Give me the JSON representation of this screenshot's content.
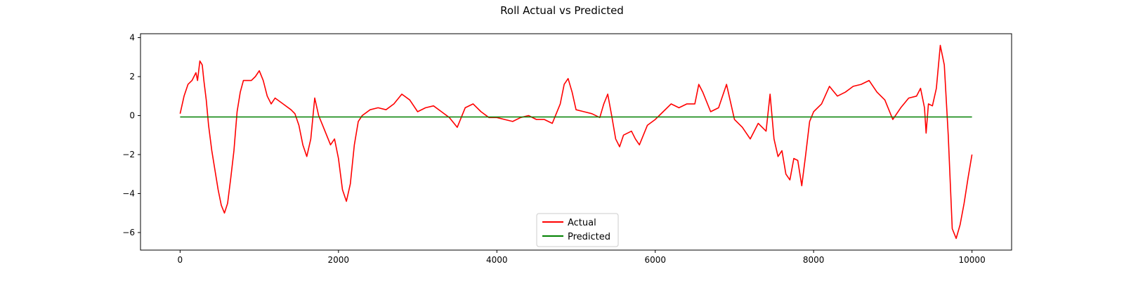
{
  "chart_data": {
    "type": "line",
    "title": "Roll Actual vs Predicted",
    "xlabel": "",
    "ylabel": "",
    "xlim": [
      -500,
      10500
    ],
    "ylim": [
      -6.9,
      4.2
    ],
    "x_ticks": [
      0,
      2000,
      4000,
      6000,
      8000,
      10000
    ],
    "y_ticks": [
      4,
      2,
      0,
      -2,
      -4,
      -6
    ],
    "x_tick_labels": [
      "0",
      "2000",
      "4000",
      "6000",
      "8000",
      "10000"
    ],
    "y_tick_labels": [
      "4",
      "2",
      "0",
      "−2",
      "−4",
      "−6"
    ],
    "grid": false,
    "legend_position": "lower center",
    "series": [
      {
        "name": "Actual",
        "color": "#ff0000",
        "points": [
          [
            0,
            0.1
          ],
          [
            50,
            1.0
          ],
          [
            100,
            1.6
          ],
          [
            150,
            1.8
          ],
          [
            200,
            2.2
          ],
          [
            220,
            1.8
          ],
          [
            250,
            2.8
          ],
          [
            280,
            2.6
          ],
          [
            300,
            1.8
          ],
          [
            330,
            0.8
          ],
          [
            360,
            -0.5
          ],
          [
            400,
            -1.8
          ],
          [
            440,
            -2.8
          ],
          [
            480,
            -3.8
          ],
          [
            520,
            -4.6
          ],
          [
            560,
            -5.0
          ],
          [
            600,
            -4.5
          ],
          [
            640,
            -3.2
          ],
          [
            680,
            -1.8
          ],
          [
            720,
            0.2
          ],
          [
            760,
            1.2
          ],
          [
            800,
            1.8
          ],
          [
            900,
            1.8
          ],
          [
            950,
            2.0
          ],
          [
            1000,
            2.3
          ],
          [
            1050,
            1.8
          ],
          [
            1100,
            1.0
          ],
          [
            1150,
            0.6
          ],
          [
            1200,
            0.9
          ],
          [
            1300,
            0.6
          ],
          [
            1400,
            0.3
          ],
          [
            1450,
            0.1
          ],
          [
            1500,
            -0.5
          ],
          [
            1550,
            -1.5
          ],
          [
            1600,
            -2.1
          ],
          [
            1650,
            -1.2
          ],
          [
            1700,
            0.9
          ],
          [
            1750,
            0.0
          ],
          [
            1800,
            -0.5
          ],
          [
            1850,
            -1.0
          ],
          [
            1900,
            -1.5
          ],
          [
            1950,
            -1.2
          ],
          [
            2000,
            -2.2
          ],
          [
            2050,
            -3.8
          ],
          [
            2100,
            -4.4
          ],
          [
            2150,
            -3.5
          ],
          [
            2200,
            -1.5
          ],
          [
            2250,
            -0.3
          ],
          [
            2300,
            0.0
          ],
          [
            2400,
            0.3
          ],
          [
            2500,
            0.4
          ],
          [
            2600,
            0.3
          ],
          [
            2700,
            0.6
          ],
          [
            2800,
            1.1
          ],
          [
            2900,
            0.8
          ],
          [
            3000,
            0.2
          ],
          [
            3100,
            0.4
          ],
          [
            3200,
            0.5
          ],
          [
            3300,
            0.2
          ],
          [
            3400,
            -0.1
          ],
          [
            3500,
            -0.6
          ],
          [
            3600,
            0.4
          ],
          [
            3700,
            0.6
          ],
          [
            3800,
            0.2
          ],
          [
            3900,
            -0.1
          ],
          [
            4000,
            -0.1
          ],
          [
            4100,
            -0.2
          ],
          [
            4200,
            -0.3
          ],
          [
            4300,
            -0.1
          ],
          [
            4400,
            0.0
          ],
          [
            4500,
            -0.2
          ],
          [
            4600,
            -0.2
          ],
          [
            4700,
            -0.4
          ],
          [
            4800,
            0.6
          ],
          [
            4850,
            1.6
          ],
          [
            4900,
            1.9
          ],
          [
            4950,
            1.2
          ],
          [
            5000,
            0.3
          ],
          [
            5100,
            0.2
          ],
          [
            5200,
            0.1
          ],
          [
            5300,
            -0.1
          ],
          [
            5350,
            0.6
          ],
          [
            5400,
            1.1
          ],
          [
            5450,
            0.0
          ],
          [
            5500,
            -1.2
          ],
          [
            5550,
            -1.6
          ],
          [
            5600,
            -1.0
          ],
          [
            5700,
            -0.8
          ],
          [
            5750,
            -1.2
          ],
          [
            5800,
            -1.5
          ],
          [
            5900,
            -0.5
          ],
          [
            6000,
            -0.2
          ],
          [
            6100,
            0.2
          ],
          [
            6200,
            0.6
          ],
          [
            6300,
            0.4
          ],
          [
            6400,
            0.6
          ],
          [
            6500,
            0.6
          ],
          [
            6550,
            1.6
          ],
          [
            6600,
            1.2
          ],
          [
            6700,
            0.2
          ],
          [
            6800,
            0.4
          ],
          [
            6900,
            1.6
          ],
          [
            7000,
            -0.2
          ],
          [
            7100,
            -0.6
          ],
          [
            7200,
            -1.2
          ],
          [
            7300,
            -0.4
          ],
          [
            7400,
            -0.8
          ],
          [
            7450,
            1.1
          ],
          [
            7500,
            -1.2
          ],
          [
            7550,
            -2.1
          ],
          [
            7600,
            -1.8
          ],
          [
            7650,
            -3.0
          ],
          [
            7700,
            -3.3
          ],
          [
            7750,
            -2.2
          ],
          [
            7800,
            -2.3
          ],
          [
            7850,
            -3.6
          ],
          [
            7900,
            -2.0
          ],
          [
            7950,
            -0.3
          ],
          [
            8000,
            0.2
          ],
          [
            8100,
            0.6
          ],
          [
            8200,
            1.5
          ],
          [
            8300,
            1.0
          ],
          [
            8400,
            1.2
          ],
          [
            8500,
            1.5
          ],
          [
            8600,
            1.6
          ],
          [
            8700,
            1.8
          ],
          [
            8800,
            1.2
          ],
          [
            8900,
            0.8
          ],
          [
            9000,
            -0.2
          ],
          [
            9100,
            0.4
          ],
          [
            9200,
            0.9
          ],
          [
            9300,
            1.0
          ],
          [
            9350,
            1.4
          ],
          [
            9400,
            0.4
          ],
          [
            9420,
            -0.9
          ],
          [
            9450,
            0.6
          ],
          [
            9500,
            0.5
          ],
          [
            9550,
            1.4
          ],
          [
            9600,
            3.6
          ],
          [
            9650,
            2.6
          ],
          [
            9700,
            -1.0
          ],
          [
            9750,
            -5.8
          ],
          [
            9800,
            -6.3
          ],
          [
            9850,
            -5.6
          ],
          [
            9900,
            -4.5
          ],
          [
            9950,
            -3.2
          ],
          [
            10000,
            -2.0
          ]
        ]
      },
      {
        "name": "Predicted",
        "color": "#008000",
        "points": [
          [
            0,
            -0.07
          ],
          [
            10000,
            -0.07
          ]
        ]
      }
    ]
  }
}
